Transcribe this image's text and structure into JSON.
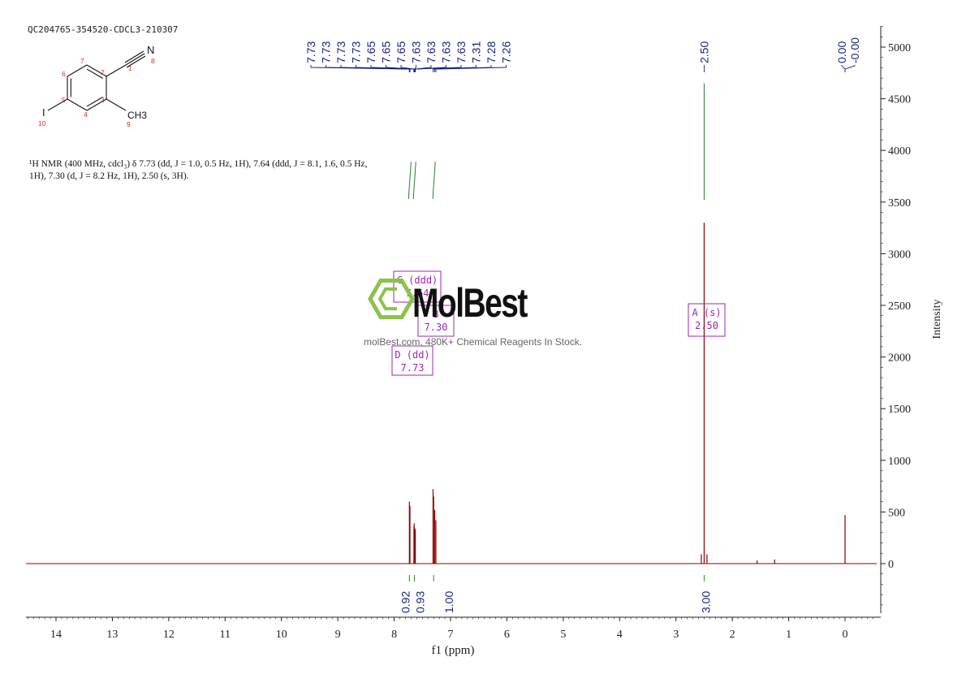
{
  "sample_label": "QC204765-354520-CDCL3-210307",
  "nmr_description": "¹H NMR (400 MHz, cdcl₃) δ 7.73 (dd, J = 1.0, 0.5 Hz, 1H), 7.64 (ddd, J = 8.1, 1.6, 0.5 Hz, 1H), 7.30 (d, J = 8.2 Hz, 1H), 2.50 (s, 3H).",
  "watermark": {
    "logo": "MolBest",
    "subtitle": "molBest.com, 480K+ Chemical Reagents In Stock."
  },
  "structure": {
    "atom_numbers": [
      "1",
      "2",
      "3",
      "4",
      "5",
      "6",
      "7",
      "8",
      "9",
      "10"
    ],
    "labels": {
      "nitrile": "N",
      "methyl": "CH3",
      "iodo": "I"
    }
  },
  "chart_data": {
    "type": "line",
    "xlabel": "f1 (ppm)",
    "ylabel": "Intensity",
    "xlim": [
      14.5,
      -0.6
    ],
    "ylim": [
      -500,
      5200
    ],
    "x_ticks": [
      "14",
      "13",
      "12",
      "11",
      "10",
      "9",
      "8",
      "7",
      "6",
      "5",
      "4",
      "3",
      "2",
      "1",
      "0"
    ],
    "y_ticks": [
      "0",
      "500",
      "1000",
      "1500",
      "2000",
      "2500",
      "3000",
      "3500",
      "4000",
      "4500",
      "5000"
    ],
    "peaks": [
      {
        "ppm": 7.73,
        "height": 600
      },
      {
        "ppm": 7.72,
        "height": 560
      },
      {
        "ppm": 7.65,
        "height": 360
      },
      {
        "ppm": 7.645,
        "height": 390
      },
      {
        "ppm": 7.63,
        "height": 340
      },
      {
        "ppm": 7.625,
        "height": 320
      },
      {
        "ppm": 7.31,
        "height": 720
      },
      {
        "ppm": 7.3,
        "height": 650
      },
      {
        "ppm": 7.28,
        "height": 520
      },
      {
        "ppm": 7.26,
        "height": 420
      },
      {
        "ppm": 2.5,
        "height": 3300
      },
      {
        "ppm": 2.55,
        "height": 90
      },
      {
        "ppm": 2.45,
        "height": 90
      },
      {
        "ppm": 1.56,
        "height": 30
      },
      {
        "ppm": 1.25,
        "height": 40
      },
      {
        "ppm": 0.0,
        "height": 470
      }
    ],
    "peak_labels_aromatic": [
      "7.73",
      "7.73",
      "7.73",
      "7.73",
      "7.65",
      "7.65",
      "7.65",
      "7.63",
      "7.63",
      "7.63",
      "7.63",
      "7.31",
      "7.28",
      "7.26"
    ],
    "peak_label_250": "2.50",
    "peak_labels_tms": [
      "0.00",
      "-0.00"
    ],
    "integrations": [
      {
        "ppm": 7.73,
        "value": "0.92"
      },
      {
        "ppm": 7.64,
        "value": "0.93"
      },
      {
        "ppm": 7.3,
        "value": "1.00"
      },
      {
        "ppm": 2.5,
        "value": "3.00"
      }
    ],
    "multiplets": [
      {
        "letter": "C",
        "mult": "(ddd)",
        "shift": "7.64"
      },
      {
        "letter": "B",
        "mult": "",
        "shift": "7.30"
      },
      {
        "letter": "D",
        "mult": "(dd)",
        "shift": "7.73"
      },
      {
        "letter": "A",
        "mult": "(s)",
        "shift": "2.50"
      }
    ],
    "colors": {
      "spectrum": "#8b0000",
      "peak_labels": "#1a237e",
      "integral": "#2e7d32",
      "multiplet": "#9c27b0",
      "axis": "#222222",
      "logo": "#8bc34a"
    }
  }
}
